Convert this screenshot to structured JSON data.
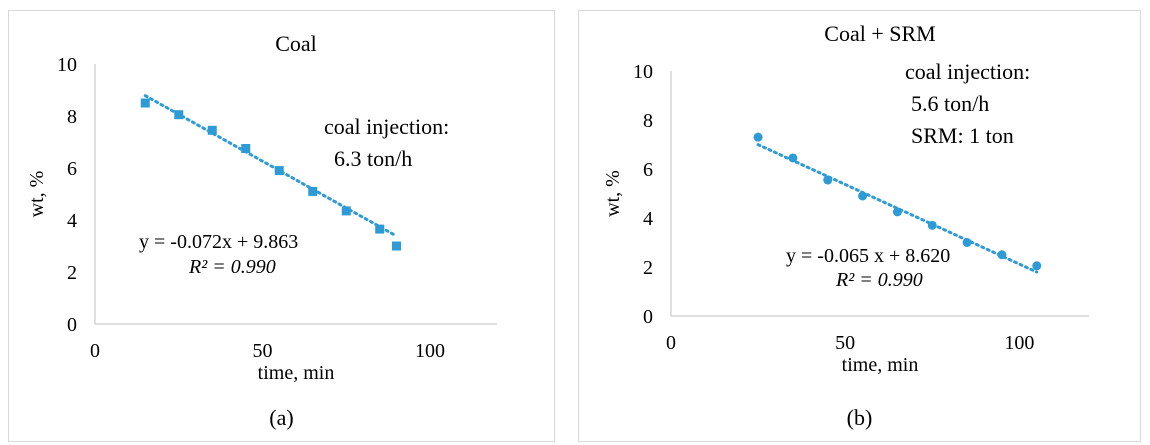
{
  "chart_data": [
    {
      "type": "scatter",
      "title": "Coal",
      "xlabel": "time, min",
      "ylabel": "wt, %",
      "xlim": [
        0,
        120
      ],
      "ylim": [
        0,
        10
      ],
      "xticks": [
        0,
        50,
        100
      ],
      "yticks": [
        0,
        2,
        4,
        6,
        8,
        10
      ],
      "marker": "square",
      "color": "#2e9bd6",
      "x": [
        15,
        25,
        35,
        45,
        55,
        65,
        75,
        85,
        90
      ],
      "y": [
        8.5,
        8.05,
        7.45,
        6.75,
        5.9,
        5.1,
        4.35,
        3.65,
        3.0
      ],
      "trendline": {
        "slope": -0.072,
        "intercept": 9.863,
        "x_range": [
          15,
          90
        ],
        "style": "dotted"
      },
      "equation": "y = -0.072x + 9.863",
      "r2": "R² = 0.990",
      "annotation": [
        "coal injection:",
        "6.3 ton/h"
      ],
      "caption": "(a)"
    },
    {
      "type": "scatter",
      "title": "Coal + SRM",
      "xlabel": "time, min",
      "ylabel": "wt, %",
      "xlim": [
        0,
        120
      ],
      "ylim": [
        0,
        10
      ],
      "xticks": [
        0,
        50,
        100
      ],
      "yticks": [
        0,
        2,
        4,
        6,
        8,
        10
      ],
      "marker": "circle",
      "color": "#2e9bd6",
      "x": [
        25,
        35,
        45,
        55,
        65,
        75,
        85,
        95,
        105
      ],
      "y": [
        7.3,
        6.45,
        5.55,
        4.9,
        4.25,
        3.7,
        3.0,
        2.5,
        2.05
      ],
      "trendline": {
        "slope": -0.065,
        "intercept": 8.62,
        "x_range": [
          25,
          105
        ],
        "style": "dotted"
      },
      "equation": "y = -0.065 x + 8.620",
      "r2": "R² = 0.990",
      "annotation": [
        "coal injection:",
        "5.6 ton/h",
        "SRM: 1 ton"
      ],
      "caption": "(b)"
    }
  ]
}
